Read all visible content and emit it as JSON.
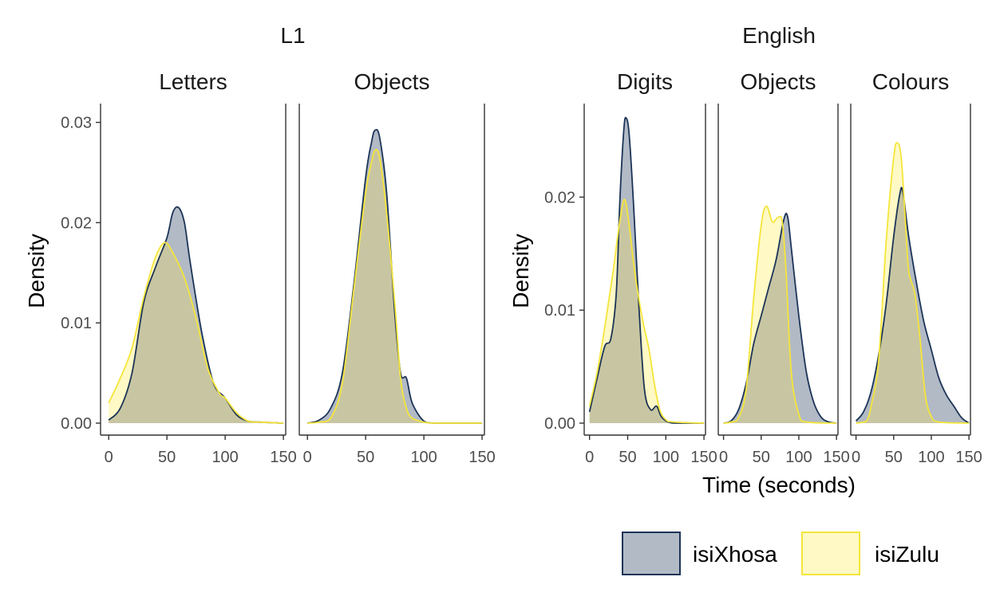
{
  "chart_data": {
    "type": "area",
    "chart_kind": "density",
    "grid": false,
    "legend_position": "bottom-right",
    "colors": {
      "isiXhosa": {
        "fill": "#b2bac6",
        "stroke": "#1c3457"
      },
      "isiZulu": {
        "fill": "#fff9c6",
        "stroke": "#f5e53a"
      },
      "overlap": "#c8c6a2"
    },
    "legend": [
      {
        "key": "isiXhosa",
        "label": "isiXhosa"
      },
      {
        "key": "isiZulu",
        "label": "isiZulu"
      }
    ],
    "groups": [
      {
        "title": "L1",
        "ylabel": "Density",
        "xlabel": "",
        "ylim": [
          0,
          0.031
        ],
        "yticks": [
          0,
          0.01,
          0.02,
          0.03
        ],
        "ytick_labels": [
          "0.00",
          "0.01",
          "0.02",
          "0.03"
        ],
        "panels": [
          {
            "title": "Letters",
            "xlim": [
              -7,
              152
            ],
            "xticks": [
              0,
              50,
              100,
              150
            ],
            "series": [
              {
                "name": "isiXhosa",
                "points": [
                  [
                    0,
                    0.0003
                  ],
                  [
                    10,
                    0.0015
                  ],
                  [
                    20,
                    0.005
                  ],
                  [
                    30,
                    0.012
                  ],
                  [
                    40,
                    0.0155
                  ],
                  [
                    50,
                    0.0185
                  ],
                  [
                    55,
                    0.021
                  ],
                  [
                    60,
                    0.0215
                  ],
                  [
                    65,
                    0.02
                  ],
                  [
                    70,
                    0.016
                  ],
                  [
                    80,
                    0.009
                  ],
                  [
                    90,
                    0.004
                  ],
                  [
                    100,
                    0.0025
                  ],
                  [
                    110,
                    0.0008
                  ],
                  [
                    120,
                    0.0002
                  ],
                  [
                    130,
                    0.0001
                  ],
                  [
                    150,
                    0
                  ]
                ]
              },
              {
                "name": "isiZulu",
                "points": [
                  [
                    0,
                    0.002
                  ],
                  [
                    10,
                    0.0045
                  ],
                  [
                    20,
                    0.0075
                  ],
                  [
                    30,
                    0.0125
                  ],
                  [
                    40,
                    0.0165
                  ],
                  [
                    48,
                    0.018
                  ],
                  [
                    55,
                    0.017
                  ],
                  [
                    65,
                    0.0145
                  ],
                  [
                    75,
                    0.0105
                  ],
                  [
                    85,
                    0.0055
                  ],
                  [
                    95,
                    0.003
                  ],
                  [
                    100,
                    0.0025
                  ],
                  [
                    110,
                    0.001
                  ],
                  [
                    120,
                    0.0002
                  ],
                  [
                    130,
                    0.0001
                  ],
                  [
                    150,
                    0
                  ]
                ]
              }
            ]
          },
          {
            "title": "Objects",
            "xlim": [
              -7,
              152
            ],
            "xticks": [
              0,
              50,
              100,
              150
            ],
            "series": [
              {
                "name": "isiXhosa",
                "points": [
                  [
                    0,
                    0
                  ],
                  [
                    10,
                    0.0003
                  ],
                  [
                    20,
                    0.0015
                  ],
                  [
                    30,
                    0.005
                  ],
                  [
                    40,
                    0.014
                  ],
                  [
                    50,
                    0.0245
                  ],
                  [
                    55,
                    0.028
                  ],
                  [
                    58,
                    0.0292
                  ],
                  [
                    62,
                    0.0285
                  ],
                  [
                    68,
                    0.023
                  ],
                  [
                    75,
                    0.011
                  ],
                  [
                    80,
                    0.005
                  ],
                  [
                    85,
                    0.0045
                  ],
                  [
                    90,
                    0.002
                  ],
                  [
                    100,
                    0.0002
                  ],
                  [
                    110,
                    0
                  ],
                  [
                    150,
                    0
                  ]
                ]
              },
              {
                "name": "isiZulu",
                "points": [
                  [
                    0,
                    0
                  ],
                  [
                    10,
                    0.0001
                  ],
                  [
                    20,
                    0.0005
                  ],
                  [
                    30,
                    0.004
                  ],
                  [
                    40,
                    0.0135
                  ],
                  [
                    50,
                    0.023
                  ],
                  [
                    55,
                    0.026
                  ],
                  [
                    58,
                    0.0272
                  ],
                  [
                    62,
                    0.0265
                  ],
                  [
                    68,
                    0.021
                  ],
                  [
                    75,
                    0.012
                  ],
                  [
                    80,
                    0.0045
                  ],
                  [
                    85,
                    0.0015
                  ],
                  [
                    90,
                    0.0005
                  ],
                  [
                    100,
                    0.0001
                  ],
                  [
                    110,
                    0
                  ],
                  [
                    150,
                    0
                  ]
                ]
              }
            ]
          }
        ]
      },
      {
        "title": "English",
        "ylabel": "Density",
        "xlabel": "Time (seconds)",
        "ylim": [
          0,
          0.0275
        ],
        "yticks": [
          0,
          0.01,
          0.02
        ],
        "ytick_labels": [
          "0.00",
          "0.01",
          "0.02"
        ],
        "panels": [
          {
            "title": "Digits",
            "xlim": [
              -7,
              152
            ],
            "xticks": [
              0,
              50,
              100,
              150
            ],
            "series": [
              {
                "name": "isiXhosa",
                "points": [
                  [
                    0,
                    0.001
                  ],
                  [
                    10,
                    0.004
                  ],
                  [
                    20,
                    0.0068
                  ],
                  [
                    28,
                    0.0075
                  ],
                  [
                    35,
                    0.0115
                  ],
                  [
                    40,
                    0.02
                  ],
                  [
                    45,
                    0.026
                  ],
                  [
                    48,
                    0.027
                  ],
                  [
                    52,
                    0.0255
                  ],
                  [
                    58,
                    0.019
                  ],
                  [
                    65,
                    0.01
                  ],
                  [
                    72,
                    0.003
                  ],
                  [
                    80,
                    0.0012
                  ],
                  [
                    88,
                    0.0015
                  ],
                  [
                    95,
                    0.0005
                  ],
                  [
                    110,
                    0
                  ],
                  [
                    150,
                    0
                  ]
                ]
              },
              {
                "name": "isiZulu",
                "points": [
                  [
                    0,
                    0.0015
                  ],
                  [
                    10,
                    0.0045
                  ],
                  [
                    20,
                    0.0085
                  ],
                  [
                    30,
                    0.013
                  ],
                  [
                    40,
                    0.018
                  ],
                  [
                    46,
                    0.0198
                  ],
                  [
                    52,
                    0.0175
                  ],
                  [
                    60,
                    0.013
                  ],
                  [
                    70,
                    0.009
                  ],
                  [
                    78,
                    0.0065
                  ],
                  [
                    85,
                    0.0035
                  ],
                  [
                    92,
                    0.0012
                  ],
                  [
                    100,
                    0.0003
                  ],
                  [
                    110,
                    0.0001
                  ],
                  [
                    150,
                    0
                  ]
                ]
              }
            ]
          },
          {
            "title": "Objects",
            "xlim": [
              -7,
              152
            ],
            "xticks": [
              0,
              50,
              100,
              150
            ],
            "series": [
              {
                "name": "isiXhosa",
                "points": [
                  [
                    0,
                    0
                  ],
                  [
                    10,
                    0.0002
                  ],
                  [
                    20,
                    0.0012
                  ],
                  [
                    30,
                    0.0035
                  ],
                  [
                    40,
                    0.007
                  ],
                  [
                    50,
                    0.0095
                  ],
                  [
                    60,
                    0.012
                  ],
                  [
                    70,
                    0.0145
                  ],
                  [
                    80,
                    0.018
                  ],
                  [
                    85,
                    0.0183
                  ],
                  [
                    90,
                    0.0155
                  ],
                  [
                    100,
                    0.0095
                  ],
                  [
                    110,
                    0.0045
                  ],
                  [
                    120,
                    0.0018
                  ],
                  [
                    130,
                    0.0005
                  ],
                  [
                    140,
                    0.0001
                  ],
                  [
                    150,
                    0
                  ]
                ]
              },
              {
                "name": "isiZulu",
                "points": [
                  [
                    0,
                    0
                  ],
                  [
                    10,
                    0.0001
                  ],
                  [
                    20,
                    0.0005
                  ],
                  [
                    30,
                    0.003
                  ],
                  [
                    40,
                    0.011
                  ],
                  [
                    50,
                    0.0175
                  ],
                  [
                    57,
                    0.0192
                  ],
                  [
                    65,
                    0.0178
                  ],
                  [
                    72,
                    0.0182
                  ],
                  [
                    78,
                    0.0178
                  ],
                  [
                    83,
                    0.0135
                  ],
                  [
                    90,
                    0.0045
                  ],
                  [
                    100,
                    0.0008
                  ],
                  [
                    110,
                    0.0001
                  ],
                  [
                    150,
                    0
                  ]
                ]
              }
            ]
          },
          {
            "title": "Colours",
            "xlim": [
              -7,
              152
            ],
            "xticks": [
              0,
              50,
              100,
              150
            ],
            "series": [
              {
                "name": "isiXhosa",
                "points": [
                  [
                    0,
                    0.0002
                  ],
                  [
                    10,
                    0.001
                  ],
                  [
                    20,
                    0.0028
                  ],
                  [
                    30,
                    0.006
                  ],
                  [
                    40,
                    0.0105
                  ],
                  [
                    50,
                    0.0165
                  ],
                  [
                    58,
                    0.0202
                  ],
                  [
                    62,
                    0.0205
                  ],
                  [
                    70,
                    0.0165
                  ],
                  [
                    80,
                    0.0125
                  ],
                  [
                    90,
                    0.009
                  ],
                  [
                    100,
                    0.0065
                  ],
                  [
                    110,
                    0.004
                  ],
                  [
                    120,
                    0.0025
                  ],
                  [
                    130,
                    0.0015
                  ],
                  [
                    140,
                    0.0005
                  ],
                  [
                    150,
                    0
                  ]
                ]
              },
              {
                "name": "isiZulu",
                "points": [
                  [
                    0,
                    0
                  ],
                  [
                    10,
                    0.0001
                  ],
                  [
                    15,
                    0.0003
                  ],
                  [
                    20,
                    0.0015
                  ],
                  [
                    30,
                    0.0055
                  ],
                  [
                    40,
                    0.016
                  ],
                  [
                    50,
                    0.0235
                  ],
                  [
                    55,
                    0.0248
                  ],
                  [
                    60,
                    0.0235
                  ],
                  [
                    65,
                    0.0185
                  ],
                  [
                    70,
                    0.0135
                  ],
                  [
                    78,
                    0.0115
                  ],
                  [
                    85,
                    0.0075
                  ],
                  [
                    92,
                    0.0025
                  ],
                  [
                    100,
                    0.0006
                  ],
                  [
                    110,
                    0.0001
                  ],
                  [
                    150,
                    0
                  ]
                ]
              }
            ]
          }
        ]
      }
    ]
  }
}
